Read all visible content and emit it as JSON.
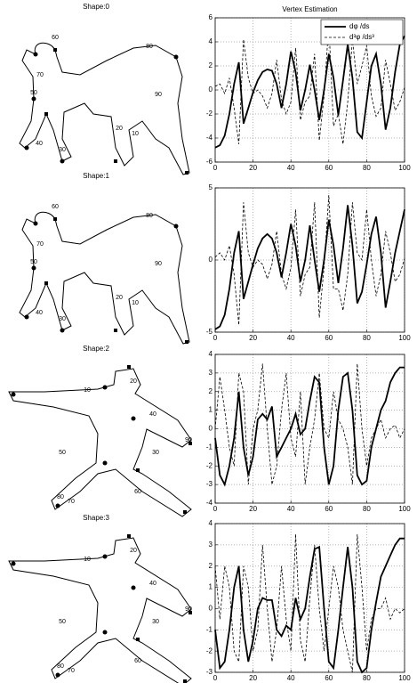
{
  "shapes": [
    {
      "title": "Shape:0",
      "vertex_labels": [
        10,
        20,
        30,
        40,
        50,
        60,
        70,
        80,
        90
      ]
    },
    {
      "title": "Shape:1",
      "vertex_labels": [
        10,
        20,
        30,
        40,
        50,
        60,
        70,
        80,
        90
      ]
    },
    {
      "title": "Shape:2",
      "vertex_labels": [
        10,
        20,
        30,
        40,
        50,
        60,
        70,
        80,
        90
      ]
    },
    {
      "title": "Shape:3",
      "vertex_labels": [
        10,
        20,
        30,
        40,
        50,
        60,
        70,
        80,
        90
      ]
    }
  ],
  "chart_data": [
    {
      "type": "line",
      "title": "Vertex Estimation",
      "legend": "upper right",
      "grid": true,
      "xlim": [
        0,
        100
      ],
      "xticks": [
        0,
        20,
        40,
        60,
        80,
        100
      ],
      "ylim": [
        -6,
        6
      ],
      "yticks": [
        -6,
        -4,
        -2,
        0,
        2,
        4,
        6
      ],
      "x": [
        0,
        2.5,
        5,
        7.5,
        10,
        12.5,
        15,
        17.5,
        20,
        22.5,
        25,
        27.5,
        30,
        32.5,
        35,
        37.5,
        40,
        42.5,
        45,
        47.5,
        50,
        52.5,
        55,
        57.5,
        60,
        62.5,
        65,
        67.5,
        70,
        72.5,
        75,
        77.5,
        80,
        82.5,
        85,
        87.5,
        90,
        92.5,
        95,
        97.5,
        100
      ],
      "series": [
        {
          "name": "dφ /ds",
          "color": "#000000",
          "style": "solid",
          "values": [
            -4.8,
            -4.6,
            -3.8,
            -2,
            0.5,
            2.3,
            -2.8,
            -1.5,
            -0.2,
            0.8,
            1.5,
            1.7,
            1.6,
            0.5,
            -1.5,
            0.5,
            3.2,
            1.5,
            -1.7,
            0,
            2.1,
            0,
            -2.5,
            0,
            3,
            1,
            -2.1,
            0.8,
            3.8,
            1,
            -3.5,
            -4,
            -1,
            2,
            3,
            0.5,
            -3.3,
            -1.5,
            1.5,
            3.8,
            4.5
          ]
        },
        {
          "name": "d³φ /ds³",
          "color": "#000000",
          "style": "dashed",
          "values": [
            0.3,
            0.5,
            -0.3,
            1,
            -1.5,
            -4.5,
            4.2,
            1,
            -0.3,
            0,
            -0.5,
            -1.5,
            -0.3,
            2.5,
            -0.8,
            -2,
            -1,
            3.5,
            -2.5,
            -1,
            -0.5,
            3,
            -4.2,
            -0.5,
            5.5,
            -3,
            -2,
            -4.5,
            -1,
            4.2,
            0.5,
            2,
            3.7,
            -0.5,
            -2.2,
            -1.5,
            2.5,
            0.5,
            -1.7,
            -1,
            0.2
          ]
        }
      ]
    },
    {
      "type": "line",
      "grid": true,
      "xlim": [
        0,
        100
      ],
      "xticks": [
        0,
        20,
        40,
        60,
        80,
        100
      ],
      "ylim": [
        -5,
        5
      ],
      "yticks": [
        -5,
        0,
        5
      ],
      "x": [
        0,
        2.5,
        5,
        7.5,
        10,
        12.5,
        15,
        17.5,
        20,
        22.5,
        25,
        27.5,
        30,
        32.5,
        35,
        37.5,
        40,
        42.5,
        45,
        47.5,
        50,
        52.5,
        55,
        57.5,
        60,
        62.5,
        65,
        67.5,
        70,
        72.5,
        75,
        77.5,
        80,
        82.5,
        85,
        87.5,
        90,
        92.5,
        95,
        97.5,
        100
      ],
      "series": [
        {
          "color": "#000000",
          "style": "solid",
          "values": [
            -4.8,
            -4.6,
            -3.8,
            -2,
            0.5,
            2,
            -2.7,
            -1.5,
            -0.3,
            0.8,
            1.5,
            1.8,
            1.5,
            0.5,
            -1.2,
            0.5,
            2.5,
            1,
            -1.5,
            0,
            2.4,
            0,
            -2.2,
            0,
            2.8,
            1,
            -1.6,
            0.8,
            3.8,
            1,
            -3,
            -2.2,
            -0.3,
            1.8,
            3,
            0.5,
            -3.3,
            -1.5,
            0.5,
            2,
            3.5
          ]
        },
        {
          "color": "#000000",
          "style": "dashed",
          "values": [
            0.2,
            0.5,
            0,
            1,
            -1,
            -4.5,
            4,
            0.5,
            -0.5,
            0,
            -0.3,
            -1.3,
            -0.3,
            2,
            -1,
            -2,
            -0.5,
            3.5,
            -2.5,
            -1,
            -0.5,
            4,
            -4,
            -0.5,
            4.5,
            -2,
            -2,
            -3.5,
            -1,
            4,
            0.5,
            0,
            3.5,
            0,
            -2.5,
            -1,
            2,
            0.5,
            -1.5,
            -1,
            0.1
          ]
        }
      ]
    },
    {
      "type": "line",
      "grid": true,
      "xlim": [
        0,
        100
      ],
      "xticks": [
        0,
        20,
        40,
        60,
        80,
        100
      ],
      "ylim": [
        -4,
        4
      ],
      "yticks": [
        -4,
        -3,
        -2,
        -1,
        0,
        1,
        2,
        3,
        4
      ],
      "x": [
        0,
        2.5,
        5,
        7.5,
        10,
        12.5,
        15,
        17.5,
        20,
        22.5,
        25,
        27.5,
        30,
        32.5,
        35,
        37.5,
        40,
        42.5,
        45,
        47.5,
        50,
        52.5,
        55,
        57.5,
        60,
        62.5,
        65,
        67.5,
        70,
        72.5,
        75,
        77.5,
        80,
        82.5,
        85,
        87.5,
        90,
        92.5,
        95,
        97.5,
        100
      ],
      "series": [
        {
          "color": "#000000",
          "style": "solid",
          "values": [
            -0.5,
            -2.5,
            -3,
            -2,
            -0.5,
            2,
            -1,
            -2.5,
            -1.5,
            0.5,
            0.8,
            0.5,
            1.2,
            -1.5,
            -1,
            -0.5,
            0,
            0.8,
            -0.3,
            0,
            1.5,
            2.8,
            2.5,
            -1,
            -3,
            -2,
            1,
            2.8,
            3,
            1,
            -2.5,
            -3,
            -2.8,
            -1,
            0,
            1,
            1.5,
            2.5,
            3,
            3.3,
            3.3
          ]
        },
        {
          "color": "#000000",
          "style": "dashed",
          "values": [
            0,
            2.8,
            1,
            -1,
            -2,
            3,
            2,
            -3,
            0,
            1,
            3.5,
            0,
            -3,
            -2,
            1,
            3,
            -0.5,
            -1.5,
            2,
            -3,
            -1,
            0.5,
            3,
            0,
            -0.5,
            2,
            0.5,
            0,
            -1,
            -3,
            3.5,
            0,
            -2,
            -0.5,
            0,
            0.5,
            -0.5,
            0,
            0.2,
            -0.5,
            0
          ]
        }
      ]
    },
    {
      "type": "line",
      "grid": true,
      "xlim": [
        0,
        100
      ],
      "xticks": [
        0,
        20,
        40,
        60,
        80,
        100
      ],
      "ylim": [
        -3,
        4
      ],
      "yticks": [
        -3,
        -2,
        -1,
        0,
        1,
        2,
        3,
        4
      ],
      "x": [
        0,
        2.5,
        5,
        7.5,
        10,
        12.5,
        15,
        17.5,
        20,
        22.5,
        25,
        27.5,
        30,
        32.5,
        35,
        37.5,
        40,
        42.5,
        45,
        47.5,
        50,
        52.5,
        55,
        57.5,
        60,
        62.5,
        65,
        67.5,
        70,
        72.5,
        75,
        77.5,
        80,
        82.5,
        85,
        87.5,
        90,
        92.5,
        95,
        97.5,
        100
      ],
      "series": [
        {
          "color": "#000000",
          "style": "solid",
          "values": [
            -1,
            -2.8,
            -2.5,
            -1,
            1,
            2,
            -1,
            -2.5,
            -1.5,
            0,
            0.5,
            0.4,
            0.4,
            -1,
            -1.3,
            -0.8,
            -1,
            0.5,
            -0.5,
            0,
            1.5,
            2.8,
            2.9,
            0,
            -2.5,
            -2.8,
            -1,
            1,
            2.9,
            1,
            -2.5,
            -3,
            -2.8,
            -1,
            0.3,
            1.5,
            2,
            2.5,
            3,
            3.3,
            3.3
          ]
        },
        {
          "color": "#000000",
          "style": "dashed",
          "values": [
            2,
            -0.5,
            2,
            1,
            -2,
            -2.5,
            2,
            1,
            -2,
            -1,
            3,
            0,
            -2.5,
            -1,
            2,
            -0.5,
            -2,
            3.5,
            -1.5,
            -2.5,
            0.5,
            3,
            0,
            -2,
            0,
            2,
            1,
            -1,
            -2,
            -3,
            3.5,
            1,
            -2,
            -0.5,
            0,
            0,
            0.5,
            -0.5,
            0,
            -0.2,
            0
          ]
        }
      ]
    }
  ]
}
